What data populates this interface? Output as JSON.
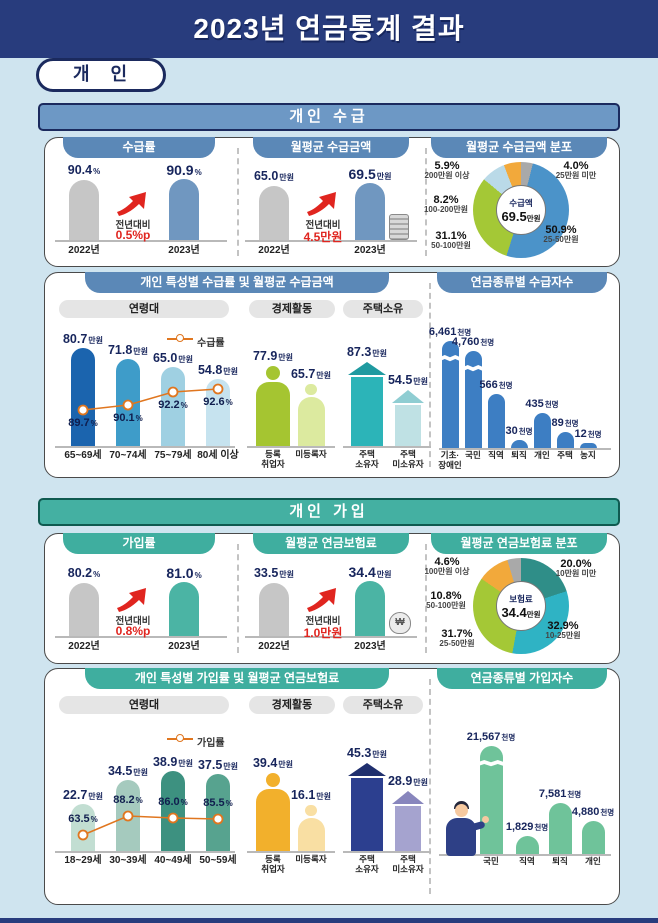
{
  "page": {
    "title": "2023년 연금통계 결과",
    "badge": "개 인"
  },
  "sections": {
    "sugup": "개인 수급",
    "gaip": "개인 가입"
  },
  "panels": {
    "sugup_detail": "개인 특성별 수급률 및 월평균 수급금액",
    "gaip_detail": "개인 특성별 가입률 및 월평균 연금보험료"
  },
  "colors": {
    "header_navy": "#283c7d",
    "section_blue": "#6d98c5",
    "tab_blue": "#5b88b7",
    "section_teal": "#44b0a2",
    "tab_teal": "#3fae9f",
    "accent_red": "#e0251f",
    "line_orange": "#e0761f",
    "page_bg": "#cfe4ef"
  },
  "chart_data": [
    {
      "id": "sugup_rate",
      "type": "bar",
      "title": "수급률",
      "categories": [
        "2022년",
        "2023년"
      ],
      "values": [
        "90.4",
        "90.9"
      ],
      "unit": "%",
      "ymax": 105,
      "bar_colors": [
        "#c6c6c6",
        "#7097c0"
      ],
      "delta": {
        "label": "전년대비",
        "value": "0.5",
        "unit": "%p"
      }
    },
    {
      "id": "sugup_amount",
      "type": "bar",
      "title": "월평균 수급금액",
      "categories": [
        "2022년",
        "2023년"
      ],
      "values": [
        "65.0",
        "69.5"
      ],
      "unit": "만원",
      "ymax": 85,
      "bar_colors": [
        "#c6c6c6",
        "#7097c0"
      ],
      "delta": {
        "label": "전년대비",
        "value": "4.5",
        "unit": "만원"
      },
      "icon": "coin-stack"
    },
    {
      "id": "sugup_dist",
      "type": "donut",
      "title": "월평균 수급금액 분포",
      "center": {
        "label": "수급액",
        "value": "69.5",
        "unit": "만원"
      },
      "slices": [
        {
          "label": "25만원 미만",
          "value": "4.0",
          "color": "#a9a9a9"
        },
        {
          "label": "25-50만원",
          "value": "50.9",
          "color": "#4b93c9"
        },
        {
          "label": "50-100만원",
          "value": "31.1",
          "color": "#a4c836"
        },
        {
          "label": "100-200만원",
          "value": "8.2",
          "color": "#badae8"
        },
        {
          "label": "200만원 이상",
          "value": "5.9",
          "color": "#f2a93b"
        }
      ]
    },
    {
      "id": "sugup_age",
      "type": "bar-line",
      "title": "연령대",
      "legend": "수급률",
      "categories": [
        "65~69세",
        "70~74세",
        "75~79세",
        "80세 이상"
      ],
      "bar_values": [
        "80.7",
        "71.8",
        "65.0",
        "54.8"
      ],
      "bar_unit": "만원",
      "line_values": [
        "89.7",
        "90.1",
        "92.2",
        "92.6"
      ],
      "line_unit": "%",
      "bar_colors": [
        "#1b64ae",
        "#3e9cc9",
        "#9fd0e2",
        "#c6e3ef"
      ],
      "line_color": "#e0761f"
    },
    {
      "id": "sugup_econ",
      "type": "pictogram",
      "title": "경제활동",
      "icon": "person",
      "categories": [
        "등록\n취업자",
        "미등록자"
      ],
      "values": [
        "77.9",
        "65.7"
      ],
      "unit": "만원",
      "icon_colors": [
        "#a5c531",
        "#dcea9f"
      ]
    },
    {
      "id": "sugup_house",
      "type": "pictogram",
      "title": "주택소유",
      "icon": "house",
      "categories": [
        "주택\n소유자",
        "주택\n미소유자"
      ],
      "values": [
        "87.3",
        "54.5"
      ],
      "unit": "만원",
      "icon_colors": [
        "#2cb4b8",
        "#bfe1e4"
      ],
      "roof_colors": [
        "#1f9aa0",
        "#8fcdd2"
      ]
    },
    {
      "id": "sugup_bytype",
      "type": "count-bar",
      "title": "연금종류별 수급자수",
      "categories": [
        "기초·\n장애인",
        "국민",
        "직역",
        "퇴직",
        "개인",
        "주택",
        "농지"
      ],
      "values": [
        "6,461",
        "4,760",
        "566",
        "30",
        "435",
        "89",
        "12"
      ],
      "unit": "천명",
      "bar_color": "#3d7ec3",
      "broken": [
        true,
        true,
        false,
        false,
        false,
        false,
        false
      ]
    },
    {
      "id": "gaip_rate",
      "type": "bar",
      "title": "가입률",
      "categories": [
        "2022년",
        "2023년"
      ],
      "values": [
        "80.2",
        "81.0"
      ],
      "unit": "%",
      "ymax": 105,
      "bar_colors": [
        "#c6c6c6",
        "#4bb4a4"
      ],
      "delta": {
        "label": "전년대비",
        "value": "0.8",
        "unit": "%p"
      }
    },
    {
      "id": "gaip_premium",
      "type": "bar",
      "title": "월평균 연금보험료",
      "categories": [
        "2022년",
        "2023년"
      ],
      "values": [
        "33.5",
        "34.4"
      ],
      "unit": "만원",
      "ymax": 44,
      "bar_colors": [
        "#c6c6c6",
        "#4bb4a4"
      ],
      "delta": {
        "label": "전년대비",
        "value": "1.0",
        "unit": "만원"
      },
      "icon": "money-bag"
    },
    {
      "id": "gaip_dist",
      "type": "donut",
      "title": "월평균 연금보험료 분포",
      "center": {
        "label": "보험료",
        "value": "34.4",
        "unit": "만원"
      },
      "slices": [
        {
          "label": "10만원 미만",
          "value": "20.0",
          "color": "#2f8e88"
        },
        {
          "label": "10-25만원",
          "value": "32.9",
          "color": "#2fb3c4"
        },
        {
          "label": "25-50만원",
          "value": "31.7",
          "color": "#a4c836"
        },
        {
          "label": "50-100만원",
          "value": "10.8",
          "color": "#f2a93b"
        },
        {
          "label": "100만원 이상",
          "value": "4.6",
          "color": "#a9a9a9"
        }
      ]
    },
    {
      "id": "gaip_age",
      "type": "bar-line",
      "title": "연령대",
      "legend": "가입률",
      "categories": [
        "18~29세",
        "30~39세",
        "40~49세",
        "50~59세"
      ],
      "bar_values": [
        "22.7",
        "34.5",
        "38.9",
        "37.5"
      ],
      "bar_unit": "만원",
      "line_values": [
        "63.5",
        "88.2",
        "86.0",
        "85.5"
      ],
      "line_unit": "%",
      "bar_colors": [
        "#c2ded2",
        "#a5cabe",
        "#3d9180",
        "#57a38f"
      ],
      "line_color": "#e0761f"
    },
    {
      "id": "gaip_econ",
      "type": "pictogram",
      "title": "경제활동",
      "icon": "person",
      "categories": [
        "등록\n취업자",
        "미등록자"
      ],
      "values": [
        "39.4",
        "16.1"
      ],
      "unit": "만원",
      "icon_colors": [
        "#f2b02c",
        "#f9dfa3"
      ]
    },
    {
      "id": "gaip_house",
      "type": "pictogram",
      "title": "주택소유",
      "icon": "house",
      "categories": [
        "주택\n소유자",
        "주택\n미소유자"
      ],
      "values": [
        "45.3",
        "28.9"
      ],
      "unit": "만원",
      "icon_colors": [
        "#2c3f8f",
        "#a5a3cf"
      ],
      "roof_colors": [
        "#1f2f6e",
        "#8886bd"
      ]
    },
    {
      "id": "gaip_bytype",
      "type": "count-bar",
      "title": "연금종류별 가입자수",
      "categories": [
        "국민",
        "직역",
        "퇴직",
        "개인"
      ],
      "values": [
        "21,567",
        "1,829",
        "7,581",
        "4,880"
      ],
      "unit": "천명",
      "bar_color": "#6fc39a",
      "broken": [
        true,
        false,
        false,
        false
      ]
    }
  ]
}
